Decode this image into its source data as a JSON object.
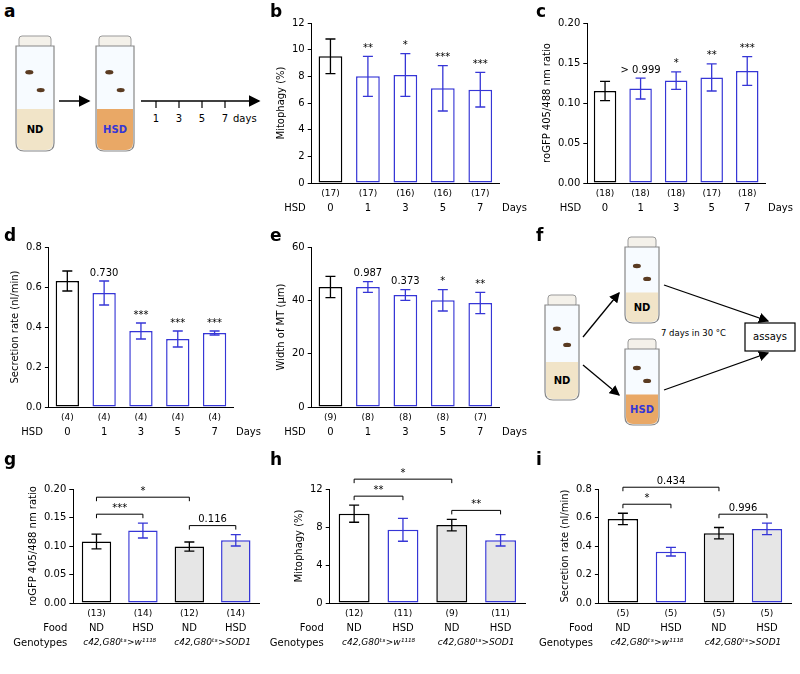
{
  "chart_data": [
    {
      "panel": "b",
      "type": "bar",
      "ylabel": "Mitophagy (%)",
      "categories": [
        "0",
        "1",
        "3",
        "5",
        "7"
      ],
      "category_label": "HSD",
      "category_unit": "Days",
      "values": [
        9.5,
        8.0,
        8.1,
        7.1,
        7.0
      ],
      "errors": [
        1.3,
        1.5,
        1.6,
        1.7,
        1.3
      ],
      "n": [
        "(17)",
        "(17)",
        "(16)",
        "(16)",
        "(17)"
      ],
      "significance": [
        null,
        "**",
        "*",
        "***",
        "***"
      ],
      "colors": [
        "#000000",
        "#3636d6",
        "#3636d6",
        "#3636d6",
        "#3636d6"
      ],
      "ylim": [
        0,
        12
      ],
      "yticks": [
        0,
        2,
        4,
        6,
        8,
        10,
        12
      ],
      "grid": false
    },
    {
      "panel": "c",
      "type": "bar",
      "ylabel": "roGFP 405/488 nm ratio",
      "categories": [
        "0",
        "1",
        "3",
        "5",
        "7"
      ],
      "category_label": "HSD",
      "category_unit": "Days",
      "values": [
        0.115,
        0.118,
        0.128,
        0.132,
        0.14
      ],
      "errors": [
        0.012,
        0.013,
        0.011,
        0.017,
        0.018
      ],
      "n": [
        "(18)",
        "(18)",
        "(18)",
        "(17)",
        "(18)"
      ],
      "significance": [
        null,
        "> 0.999",
        "*",
        "**",
        "***"
      ],
      "colors": [
        "#000000",
        "#3636d6",
        "#3636d6",
        "#3636d6",
        "#3636d6"
      ],
      "ylim": [
        0,
        0.2
      ],
      "yticks": [
        {
          "value": 0,
          "label": "0.00"
        },
        {
          "value": 0.05,
          "label": "0.05"
        },
        {
          "value": 0.1,
          "label": "0.10"
        },
        {
          "value": 0.15,
          "label": "0.15"
        },
        {
          "value": 0.2,
          "label": "0.20"
        }
      ],
      "grid": false
    },
    {
      "panel": "d",
      "type": "bar",
      "ylabel": "Secretion rate (nl/min)",
      "categories": [
        "0",
        "1",
        "3",
        "5",
        "7"
      ],
      "category_label": "HSD",
      "category_unit": "Days",
      "values": [
        0.63,
        0.57,
        0.38,
        0.34,
        0.37
      ],
      "errors": [
        0.05,
        0.06,
        0.04,
        0.04,
        0.01
      ],
      "n": [
        "(4)",
        "(4)",
        "(4)",
        "(4)",
        "(4)"
      ],
      "significance": [
        null,
        "0.730",
        "***",
        "***",
        "***"
      ],
      "colors": [
        "#000000",
        "#3636d6",
        "#3636d6",
        "#3636d6",
        "#3636d6"
      ],
      "ylim": [
        0,
        0.8
      ],
      "yticks": [
        {
          "value": 0,
          "label": "0.0"
        },
        {
          "value": 0.2,
          "label": "0.2"
        },
        {
          "value": 0.4,
          "label": "0.4"
        },
        {
          "value": 0.6,
          "label": "0.6"
        },
        {
          "value": 0.8,
          "label": "0.8"
        }
      ],
      "grid": false
    },
    {
      "panel": "e",
      "type": "bar",
      "ylabel": "Width of MT (µm)",
      "categories": [
        "0",
        "1",
        "3",
        "5",
        "7"
      ],
      "category_label": "HSD",
      "category_unit": "Days",
      "values": [
        45,
        45,
        42,
        40,
        39
      ],
      "errors": [
        4,
        2,
        2,
        4,
        4
      ],
      "n": [
        "(9)",
        "(8)",
        "(8)",
        "(8)",
        "(7)"
      ],
      "significance": [
        null,
        "0.987",
        "0.373",
        "*",
        "**"
      ],
      "colors": [
        "#000000",
        "#3636d6",
        "#3636d6",
        "#3636d6",
        "#3636d6"
      ],
      "ylim": [
        0,
        60
      ],
      "yticks": [
        0,
        20,
        40,
        60
      ],
      "grid": false
    },
    {
      "panel": "g",
      "type": "bar",
      "ylabel": "roGFP 405/488 nm ratio",
      "categories": [
        "ND",
        "HSD",
        "ND",
        "HSD"
      ],
      "category_label": "Food",
      "genotypes": [
        "c42,G80ᵗˢ>w¹¹¹⁸",
        "c42,G80ᵗˢ>w¹¹¹⁸",
        "c42,G80ᵗˢ>SOD1",
        "c42,G80ᵗˢ>SOD1"
      ],
      "genotype_label": "Genotypes",
      "values": [
        0.108,
        0.127,
        0.099,
        0.11
      ],
      "errors": [
        0.013,
        0.013,
        0.008,
        0.01
      ],
      "n": [
        "(13)",
        "(14)",
        "(12)",
        "(14)"
      ],
      "comparisons": [
        {
          "pair": [
            0,
            1
          ],
          "label": "***"
        },
        {
          "pair": [
            2,
            3
          ],
          "label": "0.116"
        },
        {
          "pair": [
            0,
            2
          ],
          "label": "*"
        }
      ],
      "colors": [
        "#000000",
        "#3636d6",
        "#000000",
        "#3636d6"
      ],
      "ylim": [
        0,
        0.2
      ],
      "yticks": [
        {
          "value": 0,
          "label": "0.00"
        },
        {
          "value": 0.05,
          "label": "0.05"
        },
        {
          "value": 0.1,
          "label": "0.10"
        },
        {
          "value": 0.15,
          "label": "0.15"
        },
        {
          "value": 0.2,
          "label": "0.20"
        }
      ],
      "grid": false
    },
    {
      "panel": "h",
      "type": "bar",
      "ylabel": "Mitophagy (%)",
      "categories": [
        "ND",
        "HSD",
        "ND",
        "HSD"
      ],
      "category_label": "Food",
      "genotypes": [
        "c42,G80ᵗˢ>w¹¹¹⁸",
        "c42,G80ᵗˢ>w¹¹¹⁸",
        "c42,G80ᵗˢ>SOD1",
        "c42,G80ᵗˢ>SOD1"
      ],
      "genotype_label": "Genotypes",
      "values": [
        9.4,
        7.7,
        8.2,
        6.6
      ],
      "errors": [
        0.9,
        1.2,
        0.6,
        0.6
      ],
      "n": [
        "(12)",
        "(11)",
        "(9)",
        "(11)"
      ],
      "comparisons": [
        {
          "pair": [
            0,
            1
          ],
          "label": "**"
        },
        {
          "pair": [
            2,
            3
          ],
          "label": "**"
        },
        {
          "pair": [
            0,
            2
          ],
          "label": "*"
        }
      ],
      "colors": [
        "#000000",
        "#3636d6",
        "#000000",
        "#3636d6"
      ],
      "ylim": [
        0,
        12
      ],
      "yticks": [
        0,
        4,
        8,
        12
      ],
      "grid": false
    },
    {
      "panel": "i",
      "type": "bar",
      "ylabel": "Secretion rate (nl/min)",
      "categories": [
        "ND",
        "HSD",
        "ND",
        "HSD"
      ],
      "category_label": "Food",
      "genotypes": [
        "c42,G80ᵗˢ>w¹¹¹⁸",
        "c42,G80ᵗˢ>w¹¹¹⁸",
        "c42,G80ᵗˢ>SOD1",
        "c42,G80ᵗˢ>SOD1"
      ],
      "genotype_label": "Genotypes",
      "values": [
        0.59,
        0.36,
        0.49,
        0.52
      ],
      "errors": [
        0.04,
        0.03,
        0.04,
        0.04
      ],
      "n": [
        "(5)",
        "(5)",
        "(5)",
        "(5)"
      ],
      "comparisons": [
        {
          "pair": [
            0,
            1
          ],
          "label": "*"
        },
        {
          "pair": [
            2,
            3
          ],
          "label": "0.996"
        },
        {
          "pair": [
            0,
            2
          ],
          "label": "0.434"
        }
      ],
      "colors": [
        "#000000",
        "#3636d6",
        "#000000",
        "#3636d6"
      ],
      "ylim": [
        0,
        0.8
      ],
      "yticks": [
        {
          "value": 0,
          "label": "0.0"
        },
        {
          "value": 0.2,
          "label": "0.2"
        },
        {
          "value": 0.4,
          "label": "0.4"
        },
        {
          "value": 0.6,
          "label": "0.6"
        },
        {
          "value": 0.8,
          "label": "0.8"
        }
      ],
      "grid": false
    }
  ],
  "diagrams": [
    {
      "panel": "a",
      "start_food": "ND",
      "next_food": "HSD",
      "timepoints": [
        "1",
        "3",
        "5",
        "7"
      ],
      "time_unit": "days"
    },
    {
      "panel": "f",
      "start_food": "ND",
      "groups": [
        "ND",
        "HSD"
      ],
      "condition": "7 days in 30 °C",
      "end": "assays"
    }
  ]
}
